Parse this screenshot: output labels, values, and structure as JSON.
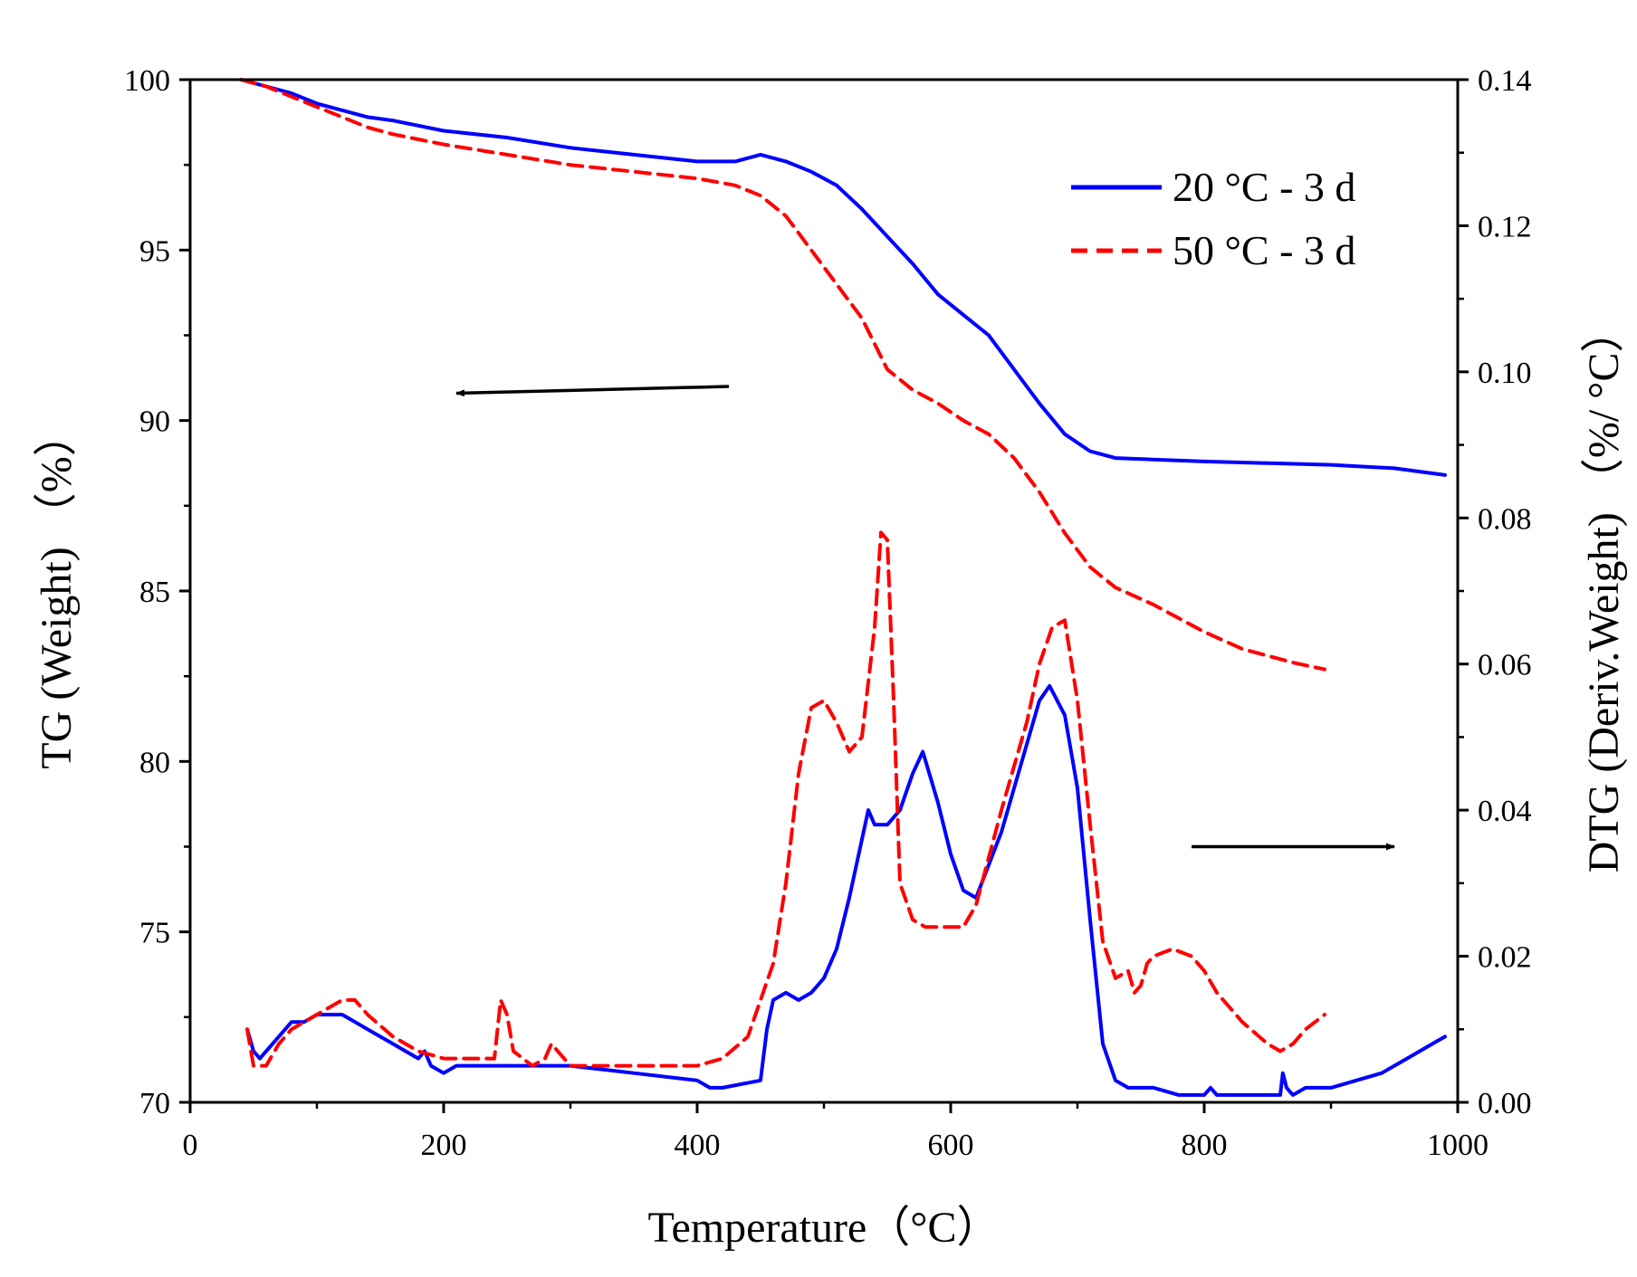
{
  "chart_data": {
    "type": "line",
    "title": "",
    "xlabel": "Temperature（°C）",
    "ylabel_left": "TG (Weight) （%）",
    "ylabel_right": "DTG (Deriv.Weight) （%/ °C）",
    "xlim": [
      0,
      1000
    ],
    "ylim_left": [
      70,
      100
    ],
    "ylim_right": [
      0,
      0.14
    ],
    "x_ticks": [
      "0",
      "200",
      "400",
      "600",
      "800",
      "1000"
    ],
    "y_left_ticks": [
      "70",
      "75",
      "80",
      "85",
      "90",
      "95",
      "100"
    ],
    "y_right_ticks": [
      "0.00",
      "0.02",
      "0.04",
      "0.06",
      "0.08",
      "0.10",
      "0.12",
      "0.14"
    ],
    "grid": false,
    "legend_position": "top-right",
    "legend": [
      {
        "label": "20 °C - 3 d",
        "color": "#0000ff",
        "style": "solid"
      },
      {
        "label": "50 °C - 3 d",
        "color": "#ff0000",
        "style": "dashed"
      }
    ],
    "annotations": [
      {
        "type": "arrow",
        "meaning": "TG curves refer to left axis",
        "direction": "left",
        "from": [
          425,
          91.0
        ],
        "to": [
          210,
          90.8
        ]
      },
      {
        "type": "arrow",
        "meaning": "DTG curves refer to right axis",
        "direction": "right",
        "from": [
          790,
          77.5
        ],
        "to": [
          950,
          77.5
        ]
      }
    ],
    "series": [
      {
        "name": "20 °C - 3 d TG",
        "axis": "left",
        "color": "#0000ff",
        "dash": "solid",
        "x": [
          40,
          60,
          80,
          100,
          120,
          140,
          160,
          200,
          250,
          300,
          350,
          400,
          430,
          450,
          470,
          490,
          510,
          530,
          550,
          570,
          590,
          610,
          630,
          650,
          670,
          690,
          710,
          730,
          800,
          900,
          950,
          990
        ],
        "y": [
          100,
          99.8,
          99.6,
          99.3,
          99.1,
          98.9,
          98.8,
          98.5,
          98.3,
          98.0,
          97.8,
          97.6,
          97.6,
          97.8,
          97.6,
          97.3,
          96.9,
          96.2,
          95.4,
          94.6,
          93.7,
          93.1,
          92.5,
          91.5,
          90.5,
          89.6,
          89.1,
          88.9,
          88.8,
          88.7,
          88.6,
          88.4
        ]
      },
      {
        "name": "50 °C - 3 d TG",
        "axis": "left",
        "color": "#ff0000",
        "dash": "dashed",
        "x": [
          40,
          60,
          80,
          100,
          120,
          140,
          160,
          200,
          250,
          300,
          350,
          400,
          430,
          450,
          470,
          490,
          510,
          530,
          550,
          570,
          590,
          610,
          630,
          650,
          670,
          690,
          710,
          730,
          760,
          800,
          830,
          870,
          895
        ],
        "y": [
          100,
          99.8,
          99.5,
          99.2,
          98.9,
          98.6,
          98.4,
          98.1,
          97.8,
          97.5,
          97.3,
          97.1,
          96.9,
          96.6,
          96.0,
          95.0,
          94.0,
          93.0,
          91.5,
          90.9,
          90.5,
          90.0,
          89.6,
          88.9,
          87.9,
          86.7,
          85.7,
          85.1,
          84.6,
          83.8,
          83.3,
          82.9,
          82.7
        ]
      },
      {
        "name": "20 °C - 3 d DTG",
        "axis": "right",
        "color": "#0000ff",
        "dash": "solid",
        "x": [
          45,
          50,
          55,
          65,
          80,
          90,
          100,
          110,
          120,
          130,
          140,
          150,
          160,
          170,
          180,
          185,
          190,
          200,
          210,
          250,
          300,
          350,
          400,
          410,
          420,
          450,
          455,
          460,
          470,
          480,
          490,
          500,
          510,
          520,
          530,
          535,
          540,
          550,
          560,
          570,
          578,
          590,
          600,
          610,
          620,
          640,
          660,
          670,
          678,
          690,
          700,
          710,
          720,
          730,
          740,
          760,
          780,
          800,
          805,
          810,
          860,
          862,
          865,
          870,
          880,
          900,
          920,
          940,
          960,
          980,
          990
        ],
        "y": [
          0.01,
          0.007,
          0.006,
          0.008,
          0.011,
          0.011,
          0.012,
          0.012,
          0.012,
          0.011,
          0.01,
          0.009,
          0.008,
          0.007,
          0.006,
          0.007,
          0.005,
          0.004,
          0.005,
          0.005,
          0.005,
          0.004,
          0.003,
          0.002,
          0.002,
          0.003,
          0.01,
          0.014,
          0.015,
          0.014,
          0.015,
          0.017,
          0.021,
          0.028,
          0.036,
          0.04,
          0.038,
          0.038,
          0.04,
          0.045,
          0.048,
          0.041,
          0.034,
          0.029,
          0.028,
          0.037,
          0.049,
          0.055,
          0.057,
          0.053,
          0.043,
          0.025,
          0.008,
          0.003,
          0.002,
          0.002,
          0.001,
          0.001,
          0.002,
          0.001,
          0.001,
          0.004,
          0.002,
          0.001,
          0.002,
          0.002,
          0.003,
          0.004,
          0.006,
          0.008,
          0.009
        ]
      },
      {
        "name": "50 °C - 3 d DTG",
        "axis": "right",
        "color": "#ff0000",
        "dash": "dashed",
        "x": [
          45,
          50,
          60,
          70,
          80,
          100,
          120,
          130,
          140,
          160,
          180,
          200,
          240,
          245,
          250,
          255,
          270,
          280,
          285,
          300,
          350,
          400,
          420,
          440,
          460,
          470,
          480,
          490,
          500,
          510,
          520,
          530,
          540,
          545,
          550,
          555,
          560,
          570,
          580,
          600,
          610,
          620,
          640,
          660,
          670,
          680,
          690,
          700,
          710,
          720,
          730,
          740,
          745,
          750,
          755,
          760,
          775,
          790,
          800,
          810,
          830,
          850,
          860,
          870,
          880,
          895
        ],
        "y": [
          0.01,
          0.005,
          0.005,
          0.008,
          0.01,
          0.012,
          0.014,
          0.014,
          0.012,
          0.009,
          0.007,
          0.006,
          0.006,
          0.014,
          0.012,
          0.007,
          0.005,
          0.006,
          0.008,
          0.005,
          0.005,
          0.005,
          0.006,
          0.009,
          0.019,
          0.03,
          0.045,
          0.054,
          0.055,
          0.052,
          0.048,
          0.05,
          0.065,
          0.078,
          0.077,
          0.055,
          0.03,
          0.025,
          0.024,
          0.024,
          0.024,
          0.027,
          0.04,
          0.052,
          0.06,
          0.065,
          0.066,
          0.055,
          0.038,
          0.022,
          0.017,
          0.018,
          0.015,
          0.016,
          0.019,
          0.02,
          0.021,
          0.02,
          0.018,
          0.015,
          0.011,
          0.008,
          0.007,
          0.008,
          0.01,
          0.012
        ]
      }
    ]
  }
}
